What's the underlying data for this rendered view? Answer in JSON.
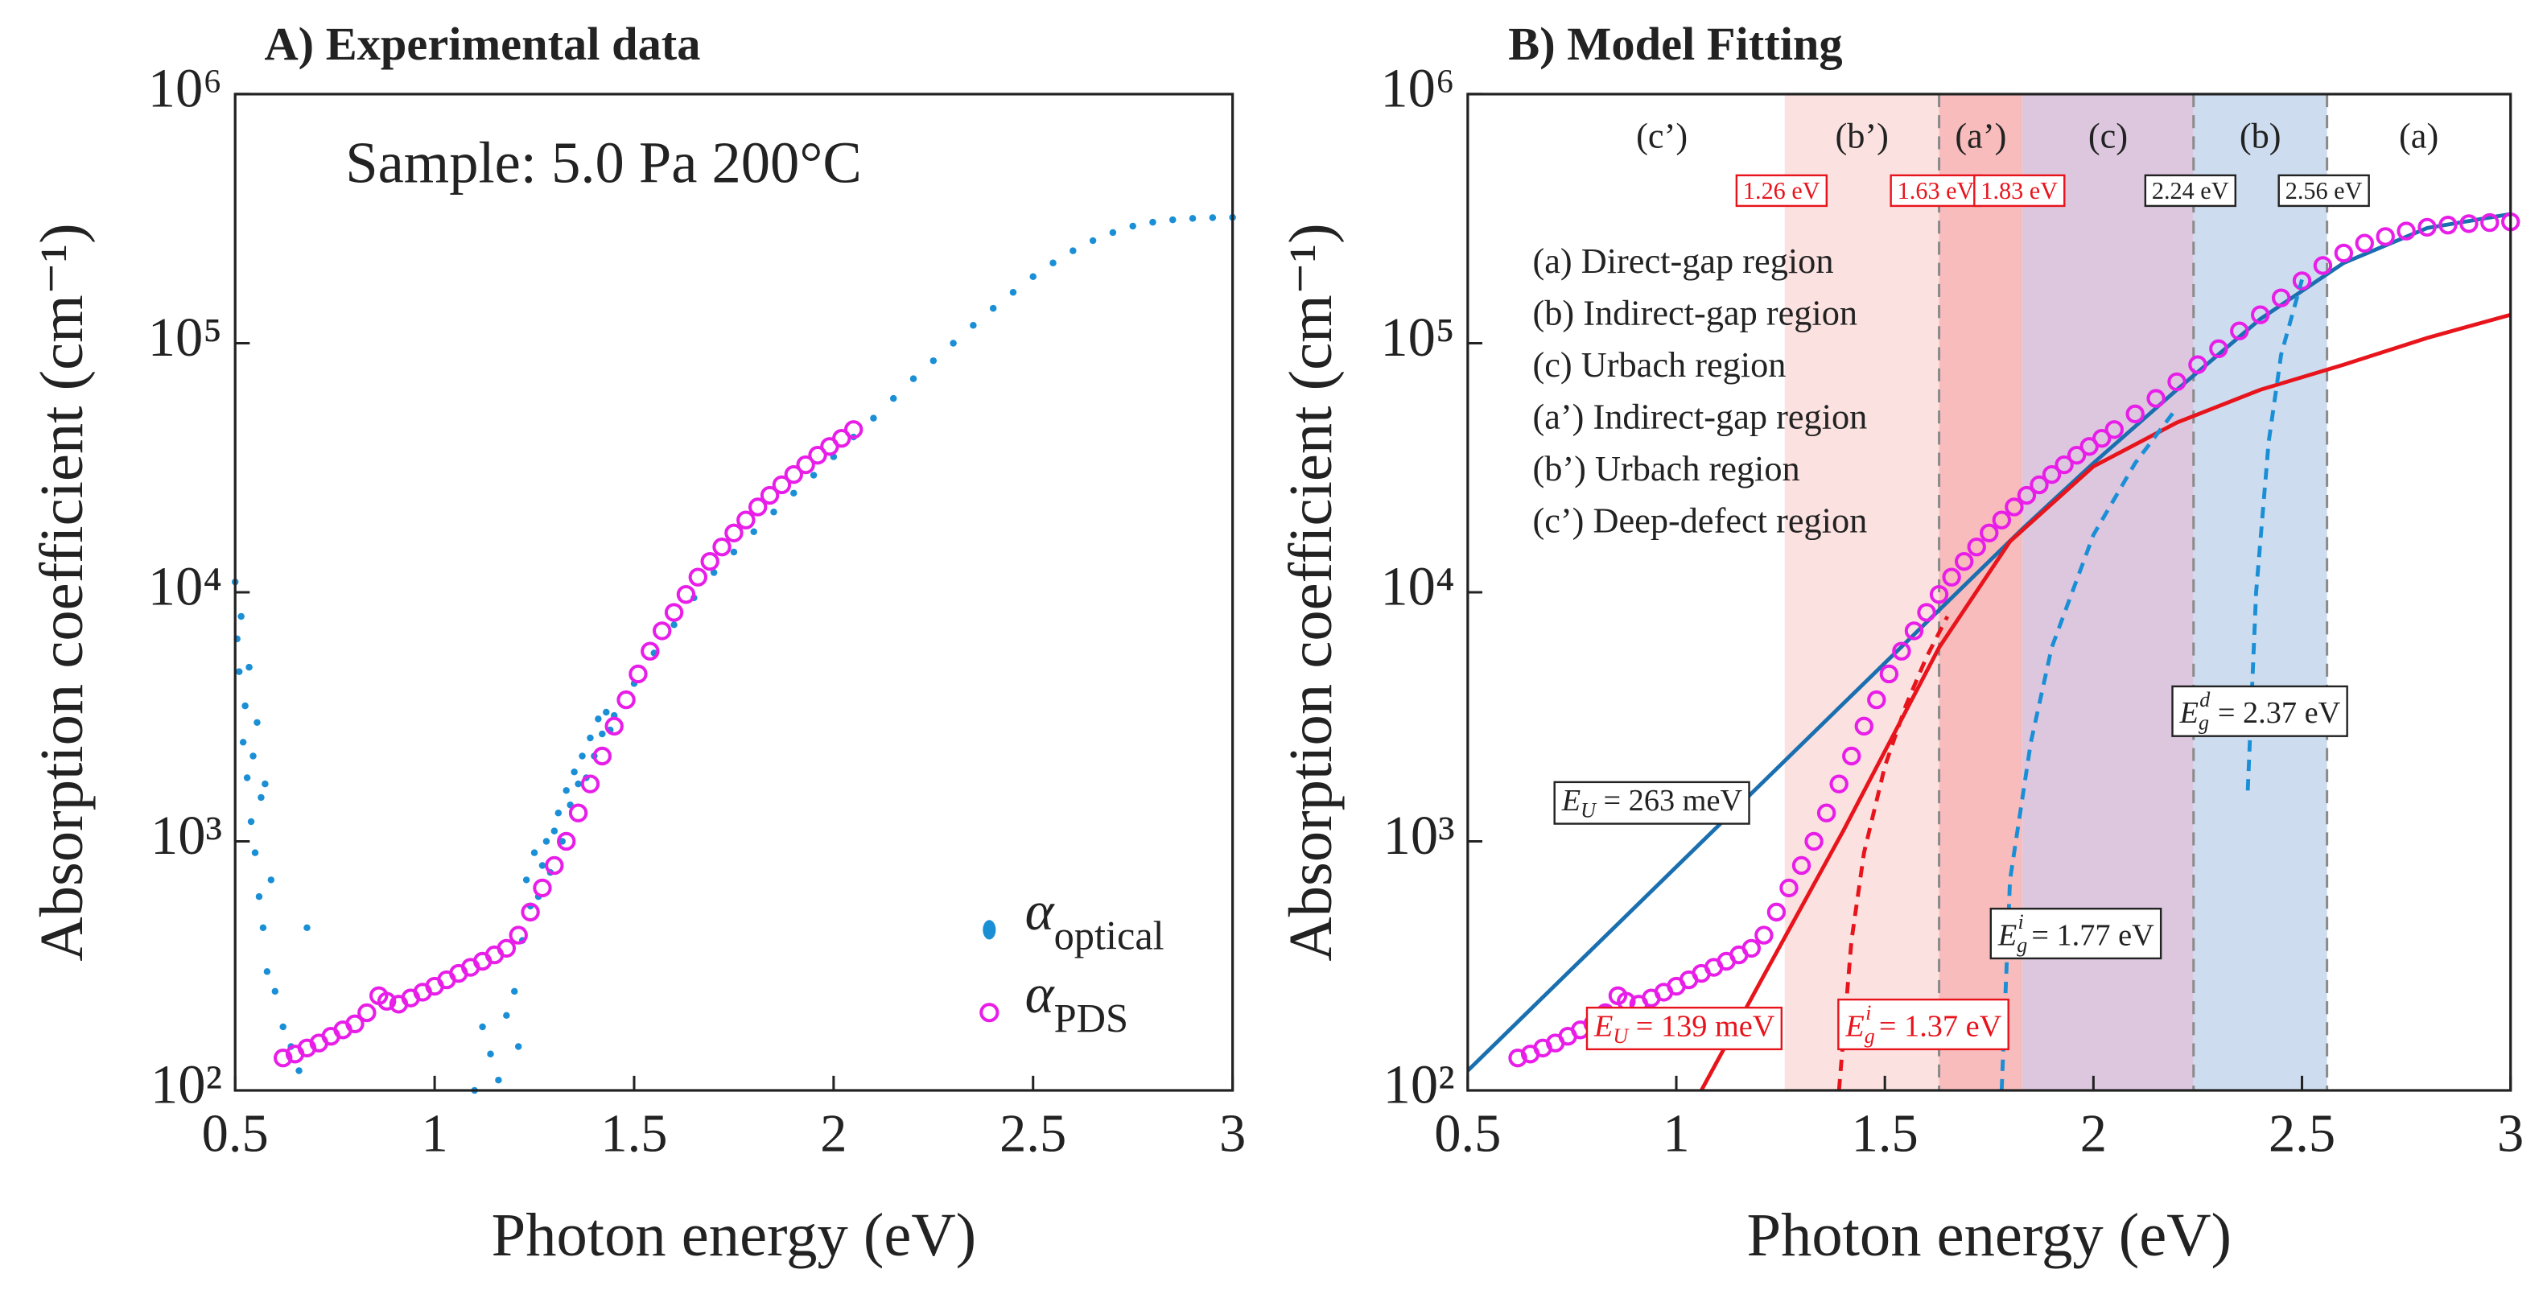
{
  "chart_data": [
    {
      "type": "scatter",
      "title": "A) Experimental data",
      "annotation": "Sample: 5.0 Pa 200°C",
      "xlabel": "Photon energy (eV)",
      "ylabel": "Absorption coefficient (cm⁻¹)",
      "xlim": [
        0.5,
        3
      ],
      "ylim": [
        100,
        1000000
      ],
      "log_y": true,
      "xticks": [
        0.5,
        1,
        1.5,
        2,
        2.5,
        3
      ],
      "yticks": [
        {
          "value": 100,
          "label": "10²"
        },
        {
          "value": 1000,
          "label": "10³"
        },
        {
          "value": 10000,
          "label": "10⁴"
        },
        {
          "value": 100000,
          "label": "10⁵"
        },
        {
          "value": 1000000,
          "label": "10⁶"
        }
      ],
      "legend_position": "lower right",
      "series": [
        {
          "name": "α",
          "subscript": "optical",
          "color": "#1a8fd6",
          "mode": "markers",
          "marker": "filled",
          "x": [
            0.5,
            0.505,
            0.51,
            0.515,
            0.52,
            0.525,
            0.53,
            0.535,
            0.54,
            0.545,
            0.55,
            0.555,
            0.56,
            0.565,
            0.57,
            0.575,
            0.58,
            0.59,
            0.6,
            0.62,
            0.64,
            0.66,
            0.68,
            1.1,
            1.12,
            1.14,
            1.16,
            1.18,
            1.2,
            1.21,
            1.22,
            1.23,
            1.24,
            1.25,
            1.26,
            1.27,
            1.28,
            1.29,
            1.3,
            1.31,
            1.32,
            1.33,
            1.34,
            1.35,
            1.36,
            1.37,
            1.38,
            1.39,
            1.4,
            1.41,
            1.42,
            1.43,
            1.44,
            1.45,
            1.5,
            1.55,
            1.6,
            1.65,
            1.7,
            1.75,
            1.8,
            1.85,
            1.9,
            1.95,
            2,
            2.05,
            2.1,
            2.15,
            2.2,
            2.25,
            2.3,
            2.35,
            2.4,
            2.45,
            2.5,
            2.55,
            2.6,
            2.65,
            2.7,
            2.75,
            2.8,
            2.85,
            2.9,
            2.95,
            3
          ],
          "values": [
            11000,
            6500,
            4800,
            8000,
            2500,
            3500,
            1800,
            5000,
            1200,
            2200,
            900,
            3000,
            600,
            1500,
            450,
            1700,
            300,
            700,
            250,
            180,
            150,
            120,
            450,
            100,
            180,
            140,
            110,
            200,
            250,
            150,
            400,
            700,
            550,
            900,
            600,
            800,
            1000,
            750,
            1100,
            1300,
            1000,
            1600,
            1400,
            1900,
            1700,
            2200,
            1800,
            2600,
            2200,
            3100,
            2700,
            3300,
            2800,
            3200,
            4300,
            5700,
            7400,
            9500,
            12000,
            14500,
            17500,
            21000,
            25000,
            29500,
            35000,
            42000,
            50000,
            60000,
            72000,
            85000,
            100000,
            118000,
            138000,
            160000,
            185000,
            210000,
            235000,
            258000,
            278000,
            295000,
            306000,
            313000,
            317000,
            319000,
            320000
          ]
        },
        {
          "name": "α",
          "subscript": "PDS",
          "color": "#e81ee8",
          "mode": "markers",
          "marker": "open",
          "x": [
            0.62,
            0.65,
            0.68,
            0.71,
            0.74,
            0.77,
            0.8,
            0.83,
            0.86,
            0.88,
            0.91,
            0.94,
            0.97,
            1,
            1.03,
            1.06,
            1.09,
            1.12,
            1.15,
            1.18,
            1.21,
            1.24,
            1.27,
            1.3,
            1.33,
            1.36,
            1.39,
            1.42,
            1.45,
            1.48,
            1.51,
            1.54,
            1.57,
            1.6,
            1.63,
            1.66,
            1.69,
            1.72,
            1.75,
            1.78,
            1.81,
            1.84,
            1.87,
            1.9,
            1.93,
            1.96,
            1.99,
            2.02,
            2.05
          ],
          "values": [
            135,
            140,
            148,
            155,
            165,
            175,
            185,
            205,
            240,
            228,
            222,
            235,
            248,
            262,
            278,
            295,
            312,
            330,
            350,
            372,
            420,
            520,
            650,
            800,
            1000,
            1300,
            1700,
            2200,
            2900,
            3700,
            4700,
            5800,
            7000,
            8300,
            9800,
            11500,
            13300,
            15200,
            17300,
            19500,
            22000,
            24500,
            27000,
            29700,
            32500,
            35500,
            38500,
            41500,
            45000
          ]
        }
      ]
    },
    {
      "type": "line",
      "title": "B) Model Fitting",
      "xlabel": "Photon energy (eV)",
      "ylabel": "Absorption coefficient (cm⁻¹)",
      "xlim": [
        0.5,
        3
      ],
      "ylim": [
        100,
        1000000
      ],
      "log_y": true,
      "xticks": [
        0.5,
        1,
        1.5,
        2,
        2.5,
        3
      ],
      "yticks": [
        {
          "value": 100,
          "label": "10²"
        },
        {
          "value": 1000,
          "label": "10³"
        },
        {
          "value": 10000,
          "label": "10⁴"
        },
        {
          "value": 100000,
          "label": "10⁵"
        },
        {
          "value": 1000000,
          "label": "10⁶"
        }
      ],
      "boundaries": [
        {
          "value": 1.26,
          "label": "1.26 eV",
          "color": "#e8141c",
          "line": false
        },
        {
          "value": 1.63,
          "label": "1.63 eV",
          "color": "#e8141c",
          "line": true
        },
        {
          "value": 1.83,
          "label": "1.83 eV",
          "color": "#e8141c",
          "line": false
        },
        {
          "value": 2.24,
          "label": "2.24 eV",
          "color": "#222222",
          "line": true
        },
        {
          "value": 2.56,
          "label": "2.56 eV",
          "color": "#222222",
          "line": true
        }
      ],
      "regions": [
        {
          "label": "(c’)"
        },
        {
          "label": "(b’)",
          "color": "#fbe1e0"
        },
        {
          "label": "(a’)",
          "color": "#f8bcbc"
        },
        {
          "label": "(c)",
          "color": "#dcc7df"
        },
        {
          "label": "(b)",
          "color": "#cddcef"
        },
        {
          "label": "(a)"
        }
      ],
      "notes": [
        "(a) Direct-gap region",
        "(b) Indirect-gap region",
        "(c) Urbach region",
        "(a’) Indirect-gap region",
        "(b’) Urbach region",
        "(c’) Deep-defect region"
      ],
      "annotations": [
        {
          "main": "E",
          "sub": "U",
          "rest": " = 263 meV",
          "color": "#222222"
        },
        {
          "main": "E",
          "sub": "U",
          "rest": " = 139 meV",
          "color": "#e8141c"
        },
        {
          "main": "E",
          "sub": "g",
          "sup": "i",
          "rest": " = 1.37 eV",
          "color": "#e8141c"
        },
        {
          "main": "E",
          "sub": "g",
          "sup": "i",
          "rest": " = 1.77 eV",
          "color": "#222222"
        },
        {
          "main": "E",
          "sub": "g",
          "sup": "d",
          "rest": " = 2.37 eV",
          "color": "#222222"
        }
      ],
      "series": [
        {
          "color": "#1a6fb0",
          "mode": "line",
          "x": [
            0.5,
            1,
            1.5,
            1.83,
            2,
            2.2,
            2.4,
            2.6,
            2.8,
            3
          ],
          "values": [
            120,
            790,
            5200,
            18000,
            33000,
            65000,
            125000,
            210000,
            290000,
            330000
          ]
        },
        {
          "color": "#e81ee8",
          "mode": "markers",
          "marker": "open",
          "x": [
            0.62,
            0.65,
            0.68,
            0.71,
            0.74,
            0.77,
            0.8,
            0.83,
            0.86,
            0.88,
            0.91,
            0.94,
            0.97,
            1,
            1.03,
            1.06,
            1.09,
            1.12,
            1.15,
            1.18,
            1.21,
            1.24,
            1.27,
            1.3,
            1.33,
            1.36,
            1.39,
            1.42,
            1.45,
            1.48,
            1.51,
            1.54,
            1.57,
            1.6,
            1.63,
            1.66,
            1.69,
            1.72,
            1.75,
            1.78,
            1.81,
            1.84,
            1.87,
            1.9,
            1.93,
            1.96,
            1.99,
            2.02,
            2.05,
            2.1,
            2.15,
            2.2,
            2.25,
            2.3,
            2.35,
            2.4,
            2.45,
            2.5,
            2.55,
            2.6,
            2.65,
            2.7,
            2.75,
            2.8,
            2.85,
            2.9,
            2.95,
            3
          ],
          "values": [
            135,
            140,
            148,
            155,
            165,
            175,
            185,
            205,
            240,
            228,
            222,
            235,
            248,
            262,
            278,
            295,
            312,
            330,
            350,
            372,
            420,
            520,
            650,
            800,
            1000,
            1300,
            1700,
            2200,
            2900,
            3700,
            4700,
            5800,
            7000,
            8300,
            9800,
            11500,
            13300,
            15200,
            17300,
            19500,
            22000,
            24500,
            27000,
            29700,
            32500,
            35500,
            38500,
            41500,
            45000,
            52000,
            60000,
            70000,
            82000,
            95000,
            112000,
            130000,
            152000,
            178000,
            205000,
            230000,
            252000,
            268000,
            282000,
            292000,
            298000,
            302000,
            305000,
            307000
          ]
        },
        {
          "color": "#e8141c",
          "mode": "line",
          "x": [
            1.06,
            1.2,
            1.4,
            1.63,
            1.8,
            2,
            2.2,
            2.4,
            2.6,
            2.8,
            3
          ],
          "values": [
            100,
            270,
            1100,
            6000,
            16000,
            32000,
            48000,
            65000,
            82000,
            105000,
            130000
          ]
        },
        {
          "color": "#e8141c",
          "mode": "line",
          "dash": true,
          "x": [
            1.39,
            1.42,
            1.45,
            1.5,
            1.55,
            1.6,
            1.65
          ],
          "values": [
            100,
            400,
            900,
            2000,
            3500,
            5500,
            8000
          ]
        },
        {
          "color": "#1a8fd6",
          "mode": "line",
          "dash": true,
          "x": [
            1.78,
            1.8,
            1.85,
            1.9,
            2,
            2.1,
            2.2
          ],
          "values": [
            100,
            700,
            2500,
            6000,
            17000,
            33000,
            55000
          ]
        },
        {
          "color": "#1a8fd6",
          "mode": "line",
          "dash": true,
          "x": [
            2.37,
            2.39,
            2.42,
            2.45,
            2.5
          ],
          "values": [
            1600,
            10000,
            40000,
            90000,
            180000
          ]
        }
      ]
    }
  ]
}
